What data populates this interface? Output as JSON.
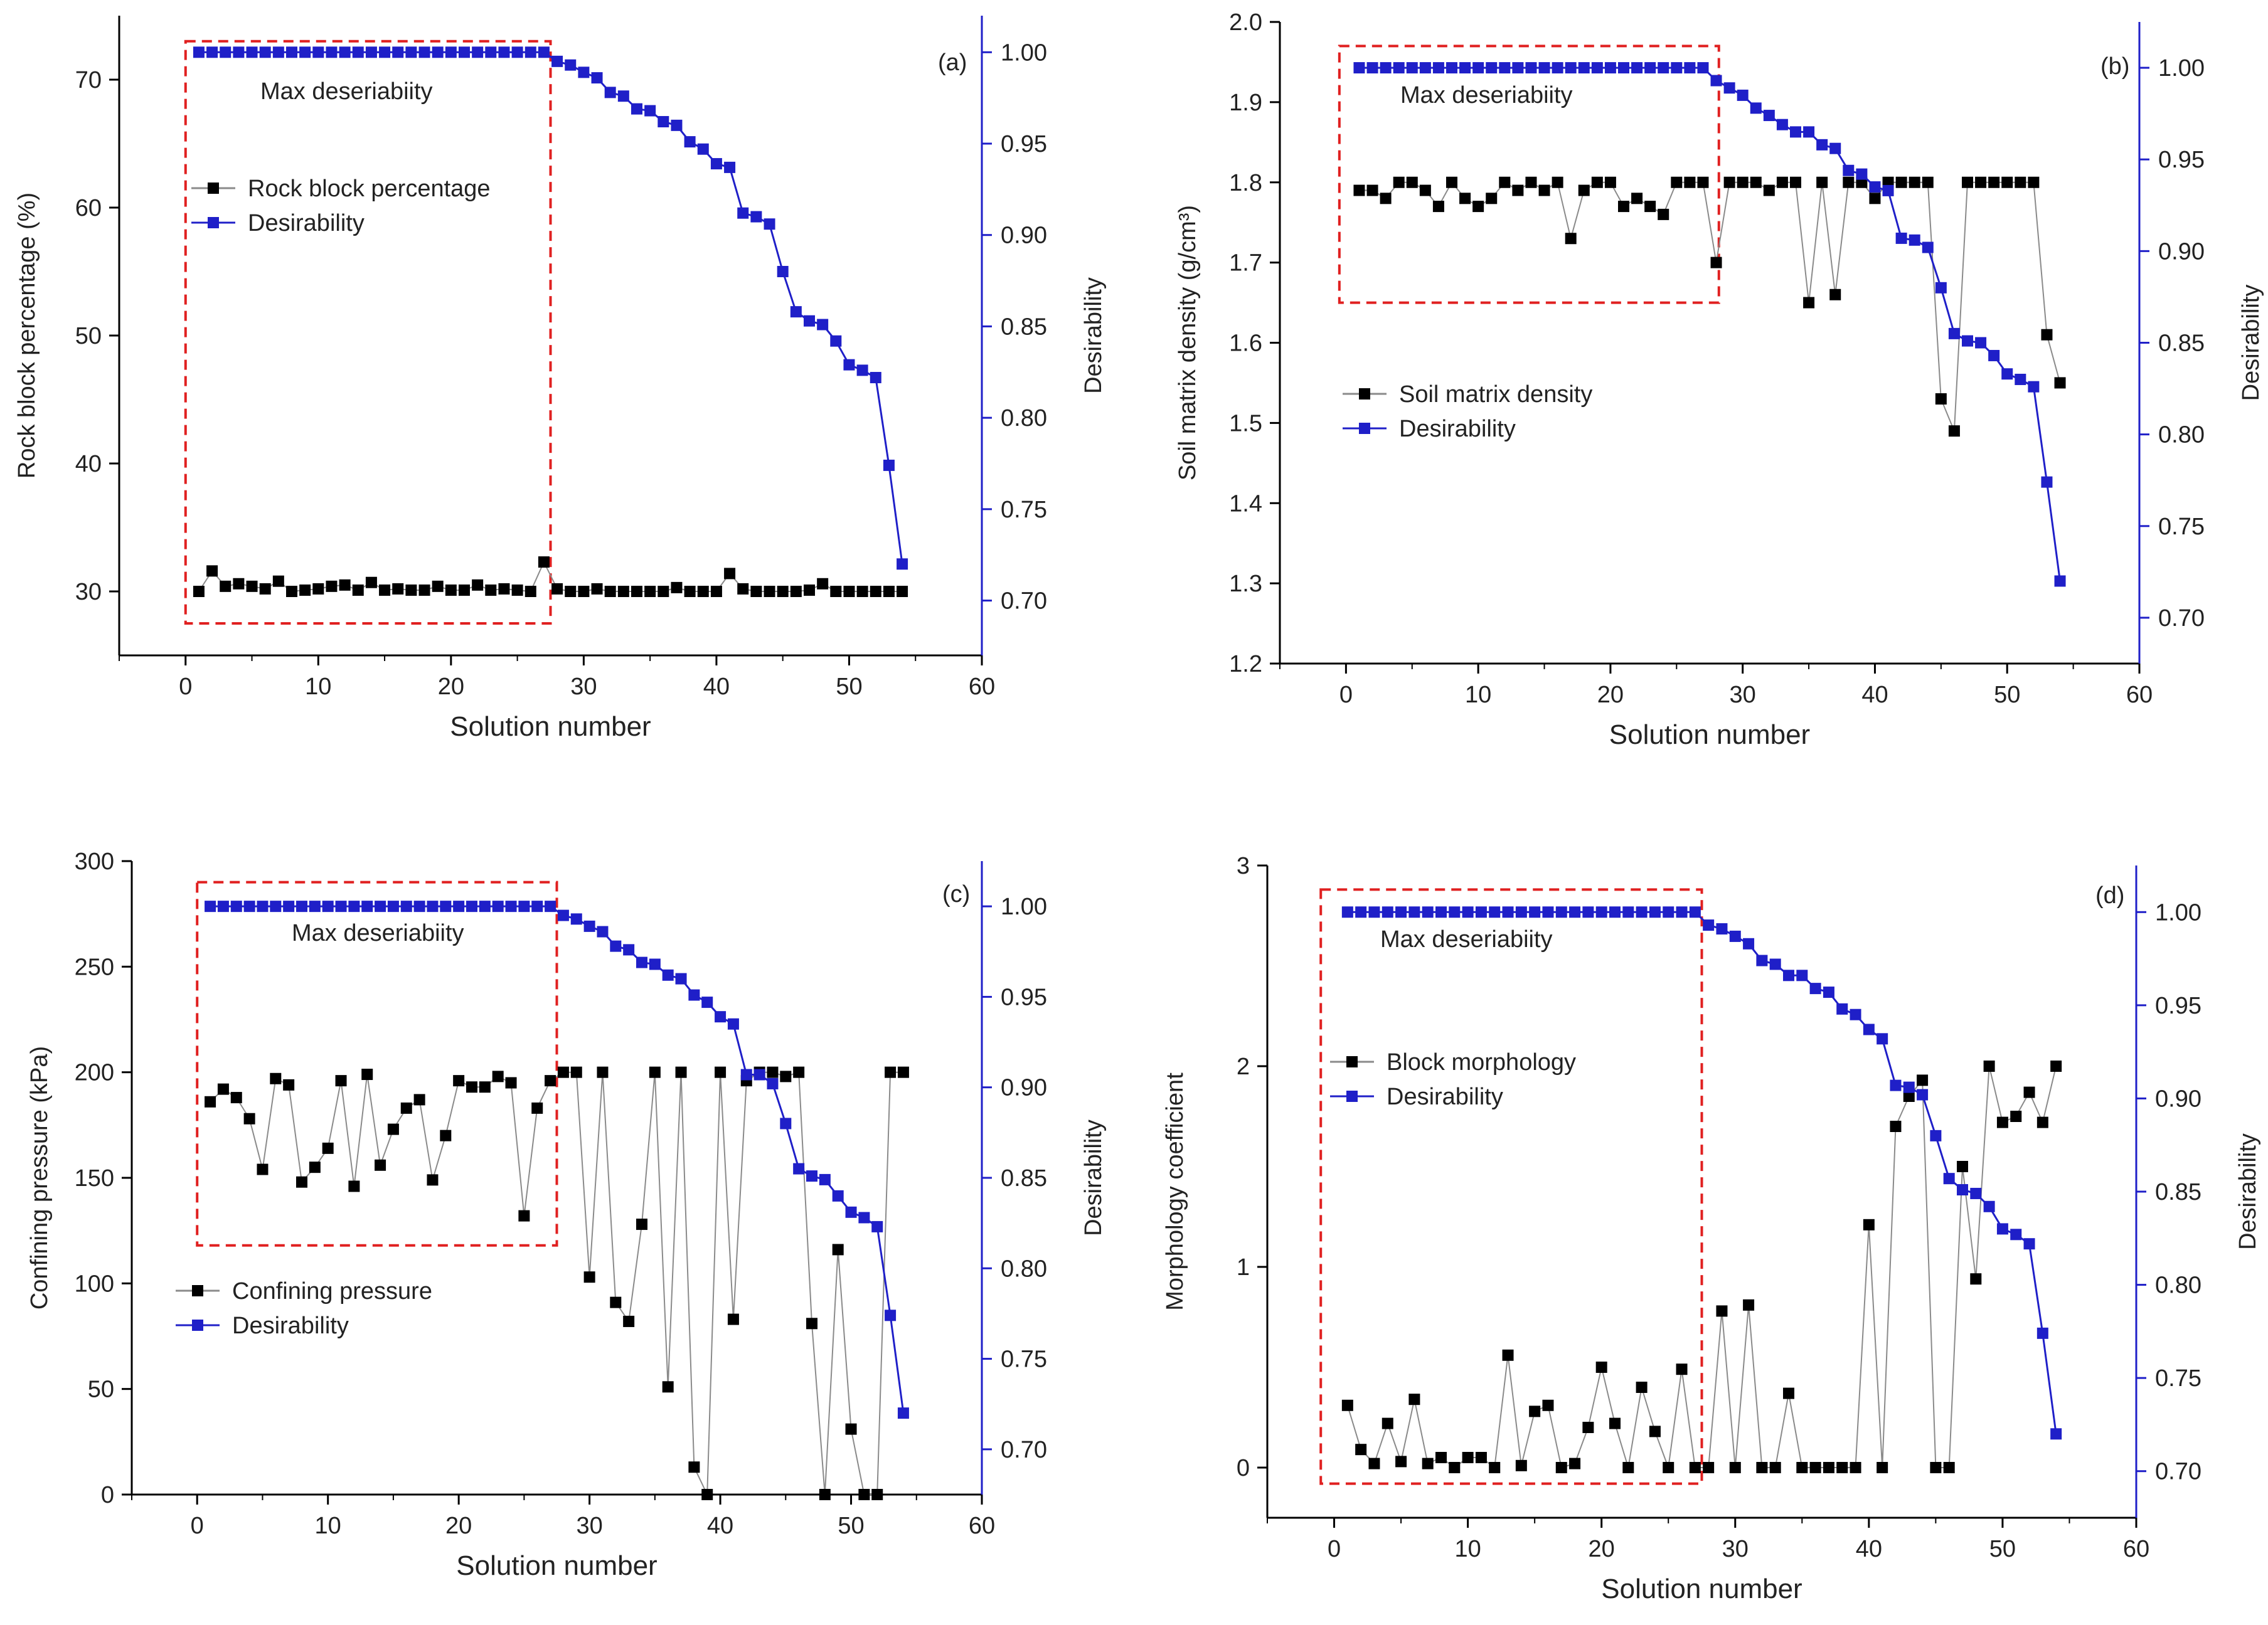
{
  "colors": {
    "left_series": "#000000",
    "right_series": "#1f1fc8",
    "right_axis": "#1f1fc8",
    "box": "#e02020",
    "line_black": "#8a8a8a"
  },
  "chart_data": [
    {
      "type": "scatter",
      "panel_label": "(a)",
      "annotation": "Max deseriabiity",
      "xlabel": "Solution number",
      "ylabel": "Rock block percentage (%)",
      "y2label": "Desirability",
      "xlim": [
        -5,
        60
      ],
      "ylim": [
        25,
        75
      ],
      "y2lim": [
        0.67,
        1.02
      ],
      "xticks": [
        "0",
        "10",
        "20",
        "30",
        "40",
        "50",
        "60"
      ],
      "yticks": [
        "30",
        "40",
        "50",
        "60",
        "70"
      ],
      "y2ticks": [
        "0.70",
        "0.75",
        "0.80",
        "0.85",
        "0.90",
        "0.95",
        "1.00"
      ],
      "legend": [
        "Rock block percentage",
        "Desirability"
      ],
      "x": [
        1,
        2,
        3,
        4,
        5,
        6,
        7,
        8,
        9,
        10,
        11,
        12,
        13,
        14,
        15,
        16,
        17,
        18,
        19,
        20,
        21,
        22,
        23,
        24,
        25,
        26,
        27,
        28,
        29,
        30,
        31,
        32,
        33,
        34,
        35,
        36,
        37,
        38,
        39,
        40,
        41,
        42,
        43,
        44,
        45,
        46,
        47,
        48,
        49,
        50,
        51,
        52,
        53,
        54
      ],
      "series": [
        {
          "name": "Rock block percentage",
          "axis": "left",
          "values": [
            30.0,
            31.6,
            30.4,
            30.6,
            30.4,
            30.2,
            30.8,
            30.0,
            30.1,
            30.2,
            30.4,
            30.5,
            30.1,
            30.7,
            30.1,
            30.2,
            30.1,
            30.1,
            30.4,
            30.1,
            30.1,
            30.5,
            30.1,
            30.2,
            30.1,
            30.0,
            32.3,
            30.2,
            30.0,
            30.0,
            30.2,
            30.0,
            30.0,
            30.0,
            30.0,
            30.0,
            30.3,
            30.0,
            30.0,
            30.0,
            31.4,
            30.2,
            30.0,
            30.0,
            30.0,
            30.0,
            30.1,
            30.6,
            30.0,
            30.0,
            30.0,
            30.0,
            30.0,
            30.0
          ]
        },
        {
          "name": "Desirability",
          "axis": "right",
          "values": [
            1,
            1,
            1,
            1,
            1,
            1,
            1,
            1,
            1,
            1,
            1,
            1,
            1,
            1,
            1,
            1,
            1,
            1,
            1,
            1,
            1,
            1,
            1,
            1,
            1,
            1,
            1,
            0.995,
            0.993,
            0.989,
            0.986,
            0.978,
            0.976,
            0.969,
            0.968,
            0.962,
            0.96,
            0.951,
            0.947,
            0.939,
            0.937,
            0.912,
            0.91,
            0.906,
            0.88,
            0.858,
            0.853,
            0.851,
            0.842,
            0.829,
            0.826,
            0.822,
            0.774,
            0.72
          ]
        }
      ],
      "box": {
        "x_from": 0,
        "x_to": 27.5,
        "y_from": 27.5,
        "y_to": 73
      }
    },
    {
      "type": "scatter",
      "panel_label": "(b)",
      "annotation": "Max deseriabiity",
      "xlabel": "Solution number",
      "ylabel": "Soil matrix density (g/cm³)",
      "y2label": "Desirability",
      "xlim": [
        -5,
        60
      ],
      "ylim": [
        1.2,
        2.0
      ],
      "y2lim": [
        0.675,
        1.025
      ],
      "xticks": [
        "0",
        "10",
        "20",
        "30",
        "40",
        "50",
        "60"
      ],
      "yticks": [
        "1.2",
        "1.3",
        "1.4",
        "1.5",
        "1.6",
        "1.7",
        "1.8",
        "1.9",
        "2.0"
      ],
      "y2ticks": [
        "0.70",
        "0.75",
        "0.80",
        "0.85",
        "0.90",
        "0.95",
        "1.00"
      ],
      "legend": [
        "Soil matrix density",
        "Desirability"
      ],
      "x": [
        1,
        2,
        3,
        4,
        5,
        6,
        7,
        8,
        9,
        10,
        11,
        12,
        13,
        14,
        15,
        16,
        17,
        18,
        19,
        20,
        21,
        22,
        23,
        24,
        25,
        26,
        27,
        28,
        29,
        30,
        31,
        32,
        33,
        34,
        35,
        36,
        37,
        38,
        39,
        40,
        41,
        42,
        43,
        44,
        45,
        46,
        47,
        48,
        49,
        50,
        51,
        52,
        53,
        54
      ],
      "series": [
        {
          "name": "Soil matrix density",
          "axis": "left",
          "values": [
            1.79,
            1.79,
            1.78,
            1.8,
            1.8,
            1.79,
            1.77,
            1.8,
            1.78,
            1.77,
            1.78,
            1.8,
            1.79,
            1.8,
            1.79,
            1.8,
            1.73,
            1.79,
            1.8,
            1.8,
            1.77,
            1.78,
            1.77,
            1.76,
            1.8,
            1.8,
            1.8,
            1.7,
            1.8,
            1.8,
            1.8,
            1.79,
            1.8,
            1.8,
            1.65,
            1.8,
            1.66,
            1.8,
            1.8,
            1.78,
            1.8,
            1.8,
            1.8,
            1.8,
            1.53,
            1.49,
            1.8,
            1.8,
            1.8,
            1.8,
            1.8,
            1.8,
            1.61,
            1.55
          ]
        },
        {
          "name": "Desirability",
          "axis": "right",
          "values": [
            1,
            1,
            1,
            1,
            1,
            1,
            1,
            1,
            1,
            1,
            1,
            1,
            1,
            1,
            1,
            1,
            1,
            1,
            1,
            1,
            1,
            1,
            1,
            1,
            1,
            1,
            1,
            0.993,
            0.989,
            0.985,
            0.978,
            0.974,
            0.969,
            0.965,
            0.965,
            0.958,
            0.956,
            0.944,
            0.942,
            0.935,
            0.933,
            0.907,
            0.906,
            0.902,
            0.88,
            0.855,
            0.851,
            0.85,
            0.843,
            0.833,
            0.83,
            0.826,
            0.774,
            0.72
          ]
        }
      ],
      "box": {
        "x_from": -0.5,
        "x_to": 28.2,
        "y_from": 1.65,
        "y_to": 1.97
      }
    },
    {
      "type": "scatter",
      "panel_label": "(c)",
      "annotation": "Max deseriabiity",
      "xlabel": "Solution number",
      "ylabel": "Confining pressure (kPa)",
      "y2label": "Desirability",
      "xlim": [
        -5,
        60
      ],
      "ylim": [
        0,
        300
      ],
      "y2lim": [
        0.675,
        1.025
      ],
      "xticks": [
        "0",
        "10",
        "20",
        "30",
        "40",
        "50",
        "60"
      ],
      "yticks": [
        "0",
        "50",
        "100",
        "150",
        "200",
        "250",
        "300"
      ],
      "y2ticks": [
        "0.70",
        "0.75",
        "0.80",
        "0.85",
        "0.90",
        "0.95",
        "1.00"
      ],
      "legend": [
        "Confining pressure",
        "Desirability"
      ],
      "x": [
        1,
        2,
        3,
        4,
        5,
        6,
        7,
        8,
        9,
        10,
        11,
        12,
        13,
        14,
        15,
        16,
        17,
        18,
        19,
        20,
        21,
        22,
        23,
        24,
        25,
        26,
        27,
        28,
        29,
        30,
        31,
        32,
        33,
        34,
        35,
        36,
        37,
        38,
        39,
        40,
        41,
        42,
        43,
        44,
        45,
        46,
        47,
        48,
        49,
        50,
        51,
        52,
        53,
        54
      ],
      "series": [
        {
          "name": "Confining pressure",
          "axis": "left",
          "values": [
            186,
            192,
            188,
            178,
            154,
            197,
            194,
            148,
            155,
            164,
            196,
            146,
            199,
            156,
            173,
            183,
            187,
            149,
            170,
            196,
            193,
            193,
            198,
            195,
            132,
            183,
            196,
            200,
            200,
            103,
            200,
            91,
            82,
            128,
            200,
            51,
            200,
            13,
            0,
            200,
            83,
            196,
            200,
            200,
            198,
            200,
            81,
            0,
            116,
            31,
            0,
            0,
            200,
            200
          ]
        },
        {
          "name": "Desirability",
          "axis": "right",
          "values": [
            1,
            1,
            1,
            1,
            1,
            1,
            1,
            1,
            1,
            1,
            1,
            1,
            1,
            1,
            1,
            1,
            1,
            1,
            1,
            1,
            1,
            1,
            1,
            1,
            1,
            1,
            1,
            0.995,
            0.993,
            0.989,
            0.986,
            0.978,
            0.976,
            0.969,
            0.968,
            0.962,
            0.96,
            0.951,
            0.947,
            0.939,
            0.935,
            0.907,
            0.907,
            0.902,
            0.88,
            0.855,
            0.851,
            0.849,
            0.84,
            0.831,
            0.828,
            0.823,
            0.774,
            0.72
          ]
        }
      ],
      "box": {
        "x_from": 0,
        "x_to": 27.5,
        "y_from": 118,
        "y_to": 290
      }
    },
    {
      "type": "scatter",
      "panel_label": "(d)",
      "annotation": "Max deseriabiity",
      "xlabel": "Solution number",
      "ylabel": "Morphology coefficient",
      "y2label": "Desirability",
      "xlim": [
        -5,
        60
      ],
      "ylim": [
        -0.25,
        3
      ],
      "y2lim": [
        0.675,
        1.025
      ],
      "xticks": [
        "0",
        "10",
        "20",
        "30",
        "40",
        "50",
        "60"
      ],
      "yticks": [
        "0",
        "1",
        "2",
        "3"
      ],
      "y2ticks": [
        "0.70",
        "0.75",
        "0.80",
        "0.85",
        "0.90",
        "0.95",
        "1.00"
      ],
      "legend": [
        "Block morphology",
        "Desirability"
      ],
      "x": [
        1,
        2,
        3,
        4,
        5,
        6,
        7,
        8,
        9,
        10,
        11,
        12,
        13,
        14,
        15,
        16,
        17,
        18,
        19,
        20,
        21,
        22,
        23,
        24,
        25,
        26,
        27,
        28,
        29,
        30,
        31,
        32,
        33,
        34,
        35,
        36,
        37,
        38,
        39,
        40,
        41,
        42,
        43,
        44,
        45,
        46,
        47,
        48,
        49,
        50,
        51,
        52,
        53,
        54
      ],
      "series": [
        {
          "name": "Block morphology",
          "axis": "left",
          "values": [
            0.31,
            0.09,
            0.02,
            0.22,
            0.03,
            0.34,
            0.02,
            0.05,
            0.0,
            0.05,
            0.05,
            0.0,
            0.56,
            0.01,
            0.28,
            0.31,
            0.0,
            0.02,
            0.2,
            0.5,
            0.22,
            0.0,
            0.4,
            0.18,
            0.0,
            0.49,
            0.0,
            0.0,
            0.78,
            0.0,
            0.81,
            0.0,
            0.0,
            0.37,
            0.0,
            0.0,
            0.0,
            0.0,
            0.0,
            1.21,
            0.0,
            1.7,
            1.85,
            1.93,
            0.0,
            0.0,
            1.5,
            0.94,
            2.0,
            1.72,
            1.75,
            1.87,
            1.72,
            2.0
          ]
        },
        {
          "name": "Desirability",
          "axis": "right",
          "values": [
            1,
            1,
            1,
            1,
            1,
            1,
            1,
            1,
            1,
            1,
            1,
            1,
            1,
            1,
            1,
            1,
            1,
            1,
            1,
            1,
            1,
            1,
            1,
            1,
            1,
            1,
            1,
            0.993,
            0.991,
            0.987,
            0.983,
            0.974,
            0.972,
            0.966,
            0.966,
            0.959,
            0.957,
            0.948,
            0.945,
            0.937,
            0.932,
            0.907,
            0.906,
            0.902,
            0.88,
            0.857,
            0.851,
            0.849,
            0.842,
            0.83,
            0.827,
            0.822,
            0.774,
            0.72
          ]
        }
      ],
      "box": {
        "x_from": -1,
        "x_to": 27.5,
        "y_from": -0.08,
        "y_to": 2.88
      }
    }
  ]
}
